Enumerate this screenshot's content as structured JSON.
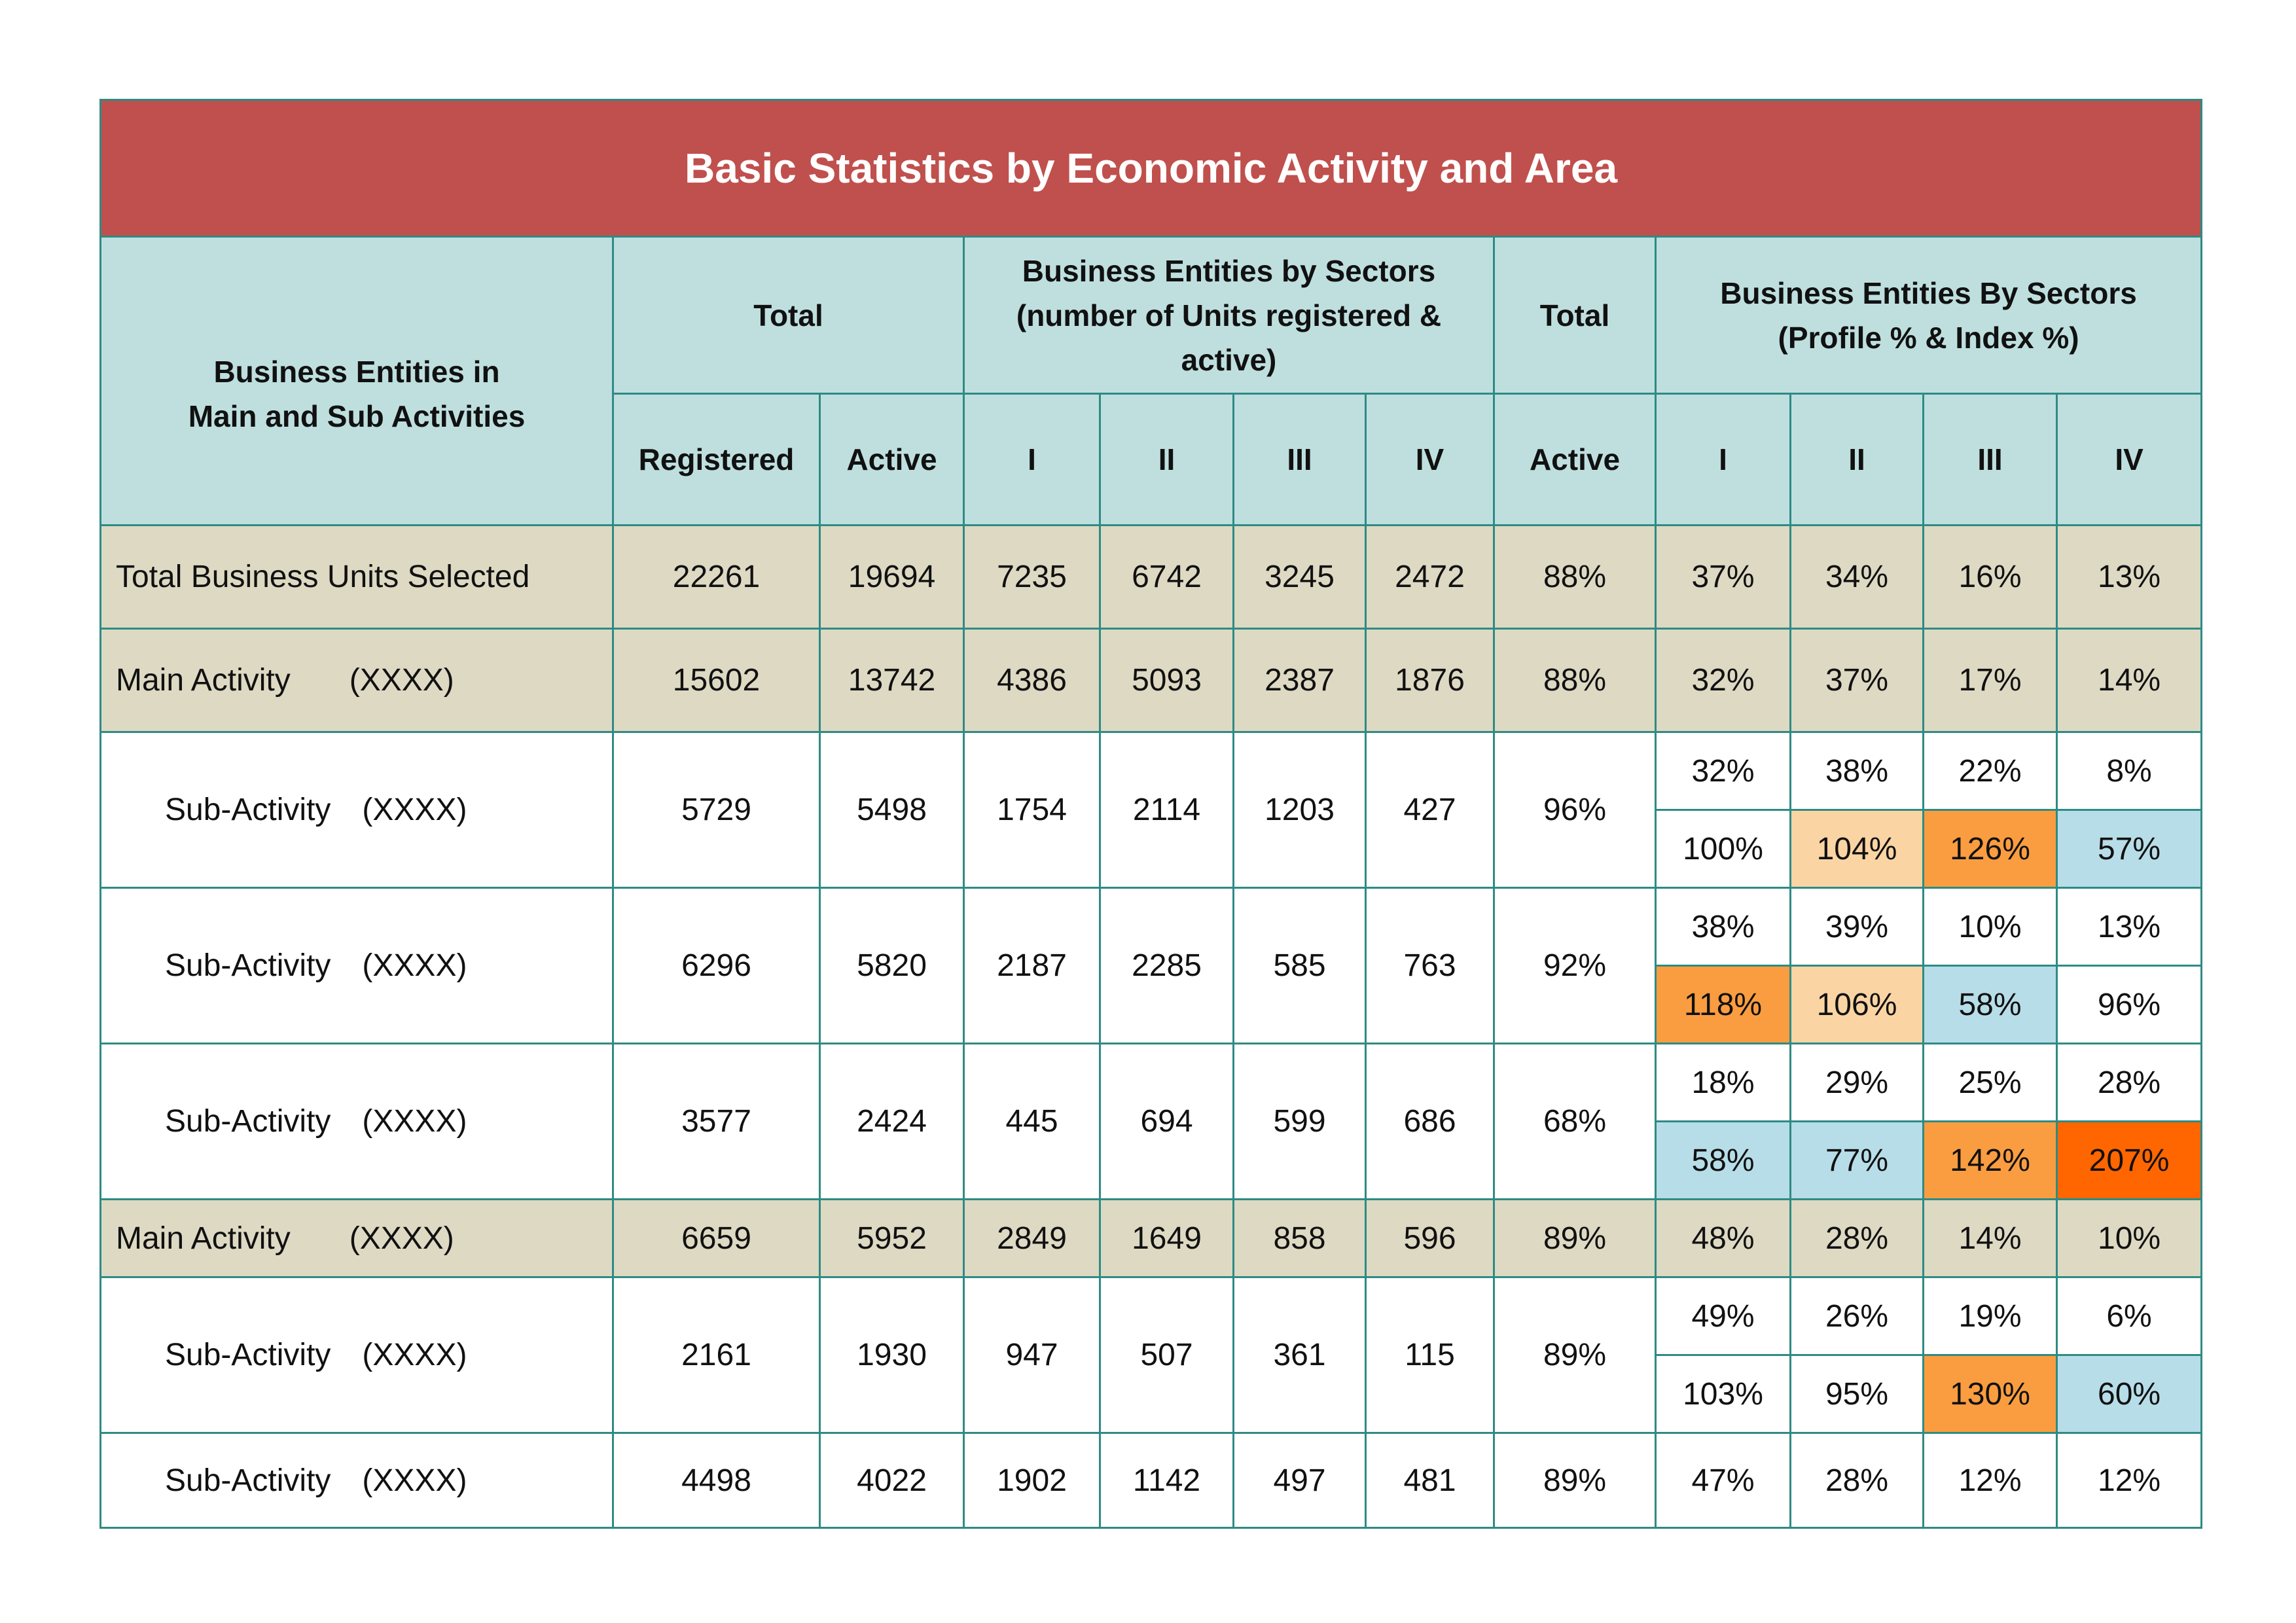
{
  "title": "Basic Statistics by Economic Activity and Area",
  "header": {
    "entities_label_line1": "Business Entities in",
    "entities_label_line2": "Main and Sub Activities",
    "total": "Total",
    "sectors_units_line1": "Business Entities by Sectors",
    "sectors_units_line2": "(number of Units registered &",
    "sectors_units_line3": "active)",
    "total2": "Total",
    "sectors_profile_line1": "Business Entities By Sectors",
    "sectors_profile_line2": "(Profile % & Index %)",
    "registered": "Registered",
    "active": "Active",
    "s1": "I",
    "s2": "II",
    "s3": "III",
    "s4": "IV",
    "active2": "Active",
    "p1": "I",
    "p2": "II",
    "p3": "III",
    "p4": "IV"
  },
  "colors": {
    "title_bg": "#c0504d",
    "header_bg": "#bfdfdf",
    "main_row_bg": "#ddd9c3",
    "index_light_orange": "#fbd4a4",
    "index_orange": "#fa9d40",
    "index_dark_orange": "#ff6600",
    "index_blue": "#b7dde8",
    "border": "#2e8b84"
  },
  "rows": [
    {
      "label": "Total Business Units Selected",
      "code": "",
      "registered": "22261",
      "active": "19694",
      "s1": "7235",
      "s2": "6742",
      "s3": "3245",
      "s4": "2472",
      "pct": "88%",
      "profile": [
        "37%",
        "34%",
        "16%",
        "13%"
      ]
    },
    {
      "label": "Main Activity",
      "code": "(XXXX)",
      "registered": "15602",
      "active": "13742",
      "s1": "4386",
      "s2": "5093",
      "s3": "2387",
      "s4": "1876",
      "pct": "88%",
      "profile": [
        "32%",
        "37%",
        "17%",
        "14%"
      ]
    },
    {
      "label": "Sub-Activity",
      "code": "(XXXX)",
      "registered": "5729",
      "active": "5498",
      "s1": "1754",
      "s2": "2114",
      "s3": "1203",
      "s4": "427",
      "pct": "96%",
      "profile": [
        "32%",
        "38%",
        "22%",
        "8%"
      ],
      "index": [
        "100%",
        "104%",
        "126%",
        "57%"
      ]
    },
    {
      "label": "Sub-Activity",
      "code": "(XXXX)",
      "registered": "6296",
      "active": "5820",
      "s1": "2187",
      "s2": "2285",
      "s3": "585",
      "s4": "763",
      "pct": "92%",
      "profile": [
        "38%",
        "39%",
        "10%",
        "13%"
      ],
      "index": [
        "118%",
        "106%",
        "58%",
        "96%"
      ]
    },
    {
      "label": "Sub-Activity",
      "code": "(XXXX)",
      "registered": "3577",
      "active": "2424",
      "s1": "445",
      "s2": "694",
      "s3": "599",
      "s4": "686",
      "pct": "68%",
      "profile": [
        "18%",
        "29%",
        "25%",
        "28%"
      ],
      "index": [
        "58%",
        "77%",
        "142%",
        "207%"
      ]
    },
    {
      "label": "Main Activity",
      "code": "(XXXX)",
      "registered": "6659",
      "active": "5952",
      "s1": "2849",
      "s2": "1649",
      "s3": "858",
      "s4": "596",
      "pct": "89%",
      "profile": [
        "48%",
        "28%",
        "14%",
        "10%"
      ]
    },
    {
      "label": "Sub-Activity",
      "code": "(XXXX)",
      "registered": "2161",
      "active": "1930",
      "s1": "947",
      "s2": "507",
      "s3": "361",
      "s4": "115",
      "pct": "89%",
      "profile": [
        "49%",
        "26%",
        "19%",
        "6%"
      ],
      "index": [
        "103%",
        "95%",
        "130%",
        "60%"
      ]
    },
    {
      "label": "Sub-Activity",
      "code": "(XXXX)",
      "registered": "4498",
      "active": "4022",
      "s1": "1902",
      "s2": "1142",
      "s3": "497",
      "s4": "481",
      "pct": "89%",
      "profile": [
        "47%",
        "28%",
        "12%",
        "12%"
      ]
    }
  ]
}
